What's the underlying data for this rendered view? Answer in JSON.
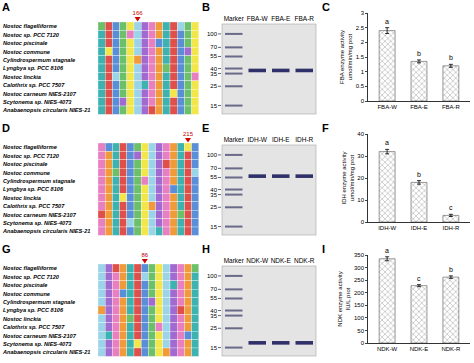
{
  "species": [
    "Nostoc flagelliforme",
    "Nostoc sp. PCC 7120",
    "Nostoc piscinale",
    "Nostoc commune",
    "Cylindrospermum stagnale",
    "Lyngbya sp. PCC 8106",
    "Nostoc linckia",
    "Calothrix sp. PCC 7507",
    "Nostoc carneum NIES-2107",
    "Scytonema sp. NIES-4073",
    "Anabaenopsis circularis NIES-21"
  ],
  "alignments": [
    {
      "letter": "A",
      "site": "166"
    },
    {
      "letter": "D",
      "site": "215"
    },
    {
      "letter": "G",
      "site": "86"
    }
  ],
  "gels": [
    {
      "letter": "B",
      "lanes": [
        "Marker",
        "FBA-W",
        "FBA-E",
        "FBA-R"
      ],
      "marker_kda": [
        100,
        70,
        55,
        40,
        35,
        25,
        15
      ],
      "band_kda": [
        38,
        38,
        38
      ]
    },
    {
      "letter": "E",
      "lanes": [
        "Marker",
        "IDH-W",
        "IDH-E",
        "IDH-R"
      ],
      "marker_kda": [
        100,
        70,
        55,
        40,
        35,
        25,
        15
      ],
      "band_kda": [
        57,
        57,
        57
      ]
    },
    {
      "letter": "H",
      "lanes": [
        "Marker",
        "NDK-W",
        "NDK-E",
        "NDK-R"
      ],
      "marker_kda": [
        100,
        70,
        55,
        40,
        35,
        25,
        15
      ],
      "band_kda": [
        17,
        17,
        17
      ]
    }
  ],
  "chart_data": [
    {
      "type": "bar",
      "letter": "C",
      "categories": [
        "FBA-W",
        "FBA-E",
        "FBA-R"
      ],
      "values": [
        2.4,
        1.35,
        1.2
      ],
      "errors": [
        0.1,
        0.05,
        0.05
      ],
      "annotations": [
        "a",
        "b",
        "b"
      ],
      "y_label": [
        "FBA enzyme activity",
        "umol/min/mg prot"
      ],
      "ylim": [
        0,
        3
      ],
      "yticks": [
        0,
        0.5,
        1,
        1.5,
        2,
        2.5,
        3
      ],
      "color": "#c8c8c8"
    },
    {
      "type": "bar",
      "letter": "F",
      "categories": [
        "IDH-W",
        "IDH-E",
        "IDH-R"
      ],
      "values": [
        32,
        18,
        3
      ],
      "errors": [
        1,
        0.8,
        0.5
      ],
      "annotations": [
        "a",
        "b",
        "c"
      ],
      "y_label": [
        "IDH enzyme activity",
        "umol/min/mg prot"
      ],
      "ylim": [
        0,
        40
      ],
      "yticks": [
        0,
        10,
        20,
        30,
        40
      ],
      "color": "#c8c8c8"
    },
    {
      "type": "bar",
      "letter": "I",
      "categories": [
        "NDK-W",
        "NDK-E",
        "NDK-R"
      ],
      "values": [
        335,
        228,
        262
      ],
      "errors": [
        8,
        4,
        5
      ],
      "annotations": [
        "a",
        "c",
        "b"
      ],
      "y_label": [
        "NDK enzyme activity",
        "IU/L prot"
      ],
      "ylim": [
        0,
        350
      ],
      "yticks": [
        0,
        50,
        100,
        150,
        200,
        250,
        300,
        350
      ],
      "color": "#c8c8c8"
    }
  ]
}
